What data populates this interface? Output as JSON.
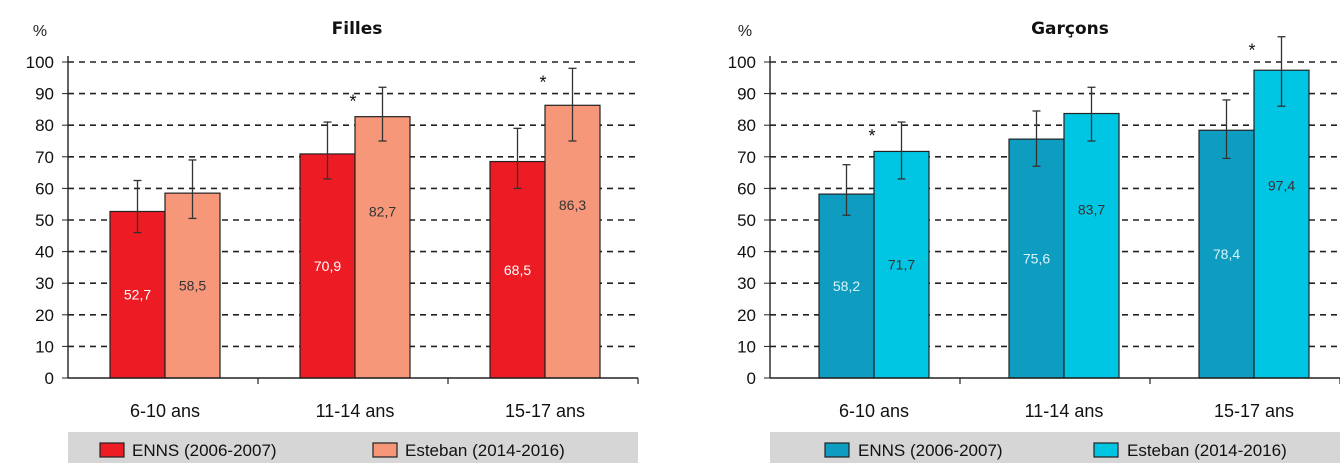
{
  "chart_data": [
    {
      "type": "bar",
      "title": "Filles",
      "ylabel": "%",
      "ylim": [
        0,
        100
      ],
      "yticks": [
        0,
        10,
        20,
        30,
        40,
        50,
        60,
        70,
        80,
        90,
        100
      ],
      "grid": true,
      "categories": [
        "6-10 ans",
        "11-14 ans",
        "15-17 ans"
      ],
      "series": [
        {
          "name": "ENNS (2006-2007)",
          "color": "#ed1c24",
          "label_color": "#ffffff",
          "values": [
            52.7,
            70.9,
            68.5
          ],
          "labels": [
            "52,7",
            "70,9",
            "68,5"
          ],
          "err_low": [
            46,
            63,
            60
          ],
          "err_high": [
            62.5,
            81,
            79
          ],
          "stars": [
            false,
            false,
            false
          ]
        },
        {
          "name": "Esteban (2014-2016)",
          "color": "#f7977a",
          "label_color": "#333333",
          "values": [
            58.5,
            82.7,
            86.3
          ],
          "labels": [
            "58,5",
            "82,7",
            "86,3"
          ],
          "err_low": [
            50.5,
            75,
            75
          ],
          "err_high": [
            69,
            92,
            98
          ],
          "stars": [
            false,
            true,
            true
          ]
        }
      ],
      "star_text": "*",
      "legend_placement": "bottom"
    },
    {
      "type": "bar",
      "title": "Garçons",
      "ylabel": "%",
      "ylim": [
        0,
        100
      ],
      "yticks": [
        0,
        10,
        20,
        30,
        40,
        50,
        60,
        70,
        80,
        90,
        100
      ],
      "grid": true,
      "categories": [
        "6-10 ans",
        "11-14 ans",
        "15-17 ans"
      ],
      "series": [
        {
          "name": "ENNS (2006-2007)",
          "color": "#0e9dc0",
          "label_color": "#d8f4fb",
          "values": [
            58.2,
            75.6,
            78.4
          ],
          "labels": [
            "58,2",
            "75,6",
            "78,4"
          ],
          "err_low": [
            51.5,
            67,
            69.5
          ],
          "err_high": [
            67.5,
            84.5,
            88
          ],
          "stars": [
            false,
            false,
            false
          ]
        },
        {
          "name": "Esteban (2014-2016)",
          "color": "#00c5e3",
          "label_color": "#333333",
          "values": [
            71.7,
            83.7,
            97.4
          ],
          "labels": [
            "71,7",
            "83,7",
            "97,4"
          ],
          "err_low": [
            63,
            75,
            86
          ],
          "err_high": [
            81,
            92,
            108
          ],
          "stars": [
            true,
            false,
            true
          ]
        }
      ],
      "star_text": "*",
      "legend_placement": "bottom"
    }
  ]
}
